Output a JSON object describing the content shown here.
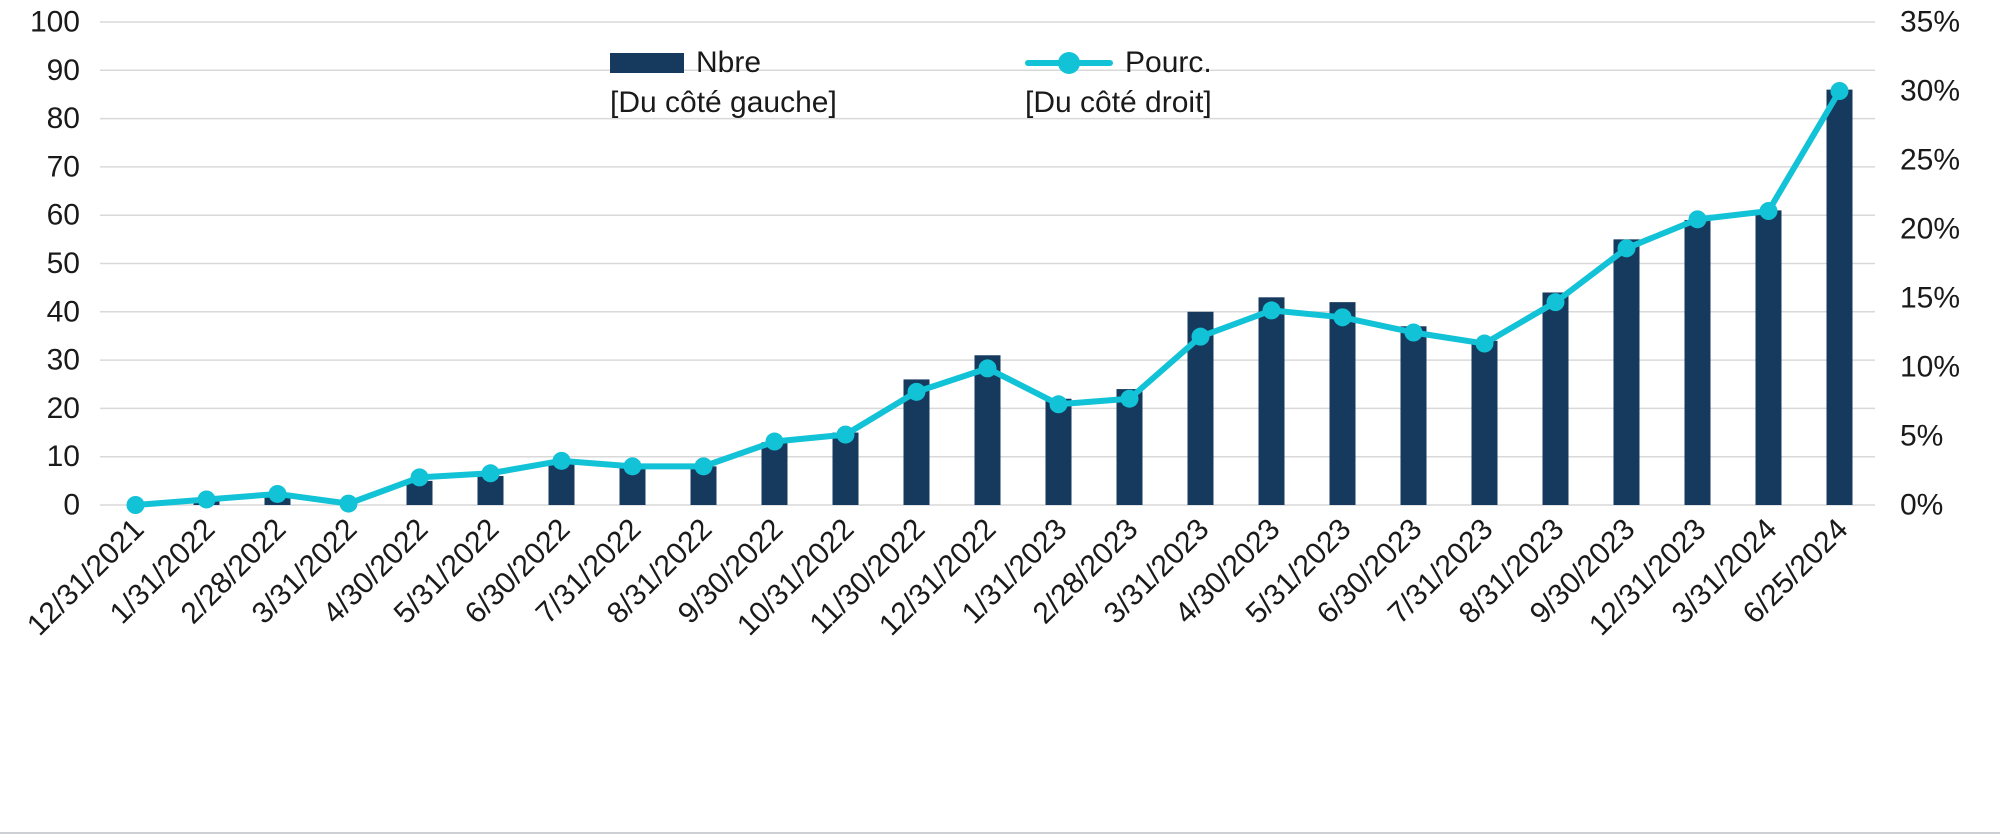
{
  "chart_data": {
    "type": "bar+line",
    "title": "",
    "categories": [
      "12/31/2021",
      "1/31/2022",
      "2/28/2022",
      "3/31/2022",
      "4/30/2022",
      "5/31/2022",
      "6/30/2022",
      "7/31/2022",
      "8/31/2022",
      "9/30/2022",
      "10/31/2022",
      "11/30/2022",
      "12/31/2022",
      "1/31/2023",
      "2/28/2023",
      "3/31/2023",
      "4/30/2023",
      "5/31/2023",
      "6/30/2023",
      "7/31/2023",
      "8/31/2023",
      "9/30/2023",
      "12/31/2023",
      "3/31/2024",
      "6/25/2024"
    ],
    "series": [
      {
        "name": "Nbre",
        "note": "[Du côté gauche]",
        "type": "bar",
        "axis": "left",
        "color": "#153A5E",
        "values": [
          0,
          1,
          2,
          0,
          5,
          6,
          9,
          8,
          8,
          13,
          15,
          26,
          31,
          22,
          24,
          40,
          43,
          42,
          37,
          34,
          44,
          55,
          59,
          61,
          86
        ]
      },
      {
        "name": "Pourc.",
        "note": "[Du côté droit]",
        "type": "line",
        "axis": "right",
        "color": "#12C2D6",
        "values": [
          0,
          0.4,
          0.8,
          0.1,
          2,
          2.3,
          3.2,
          2.8,
          2.8,
          4.6,
          5.1,
          8.2,
          9.9,
          7.3,
          7.7,
          12.2,
          14.1,
          13.6,
          12.5,
          11.7,
          14.7,
          18.6,
          20.7,
          21.3,
          30
        ]
      }
    ],
    "left_axis": {
      "min": 0,
      "max": 100,
      "step": 10
    },
    "right_axis": {
      "min": 0,
      "max": 35,
      "step": 5,
      "suffix": "%"
    },
    "grid": true,
    "legend_position": "top-center"
  },
  "colors": {
    "background": "#FFFFFF",
    "grid": "#D9D9D9",
    "text": "#1A1A1A",
    "bar": "#153A5E",
    "line": "#12C2D6"
  }
}
